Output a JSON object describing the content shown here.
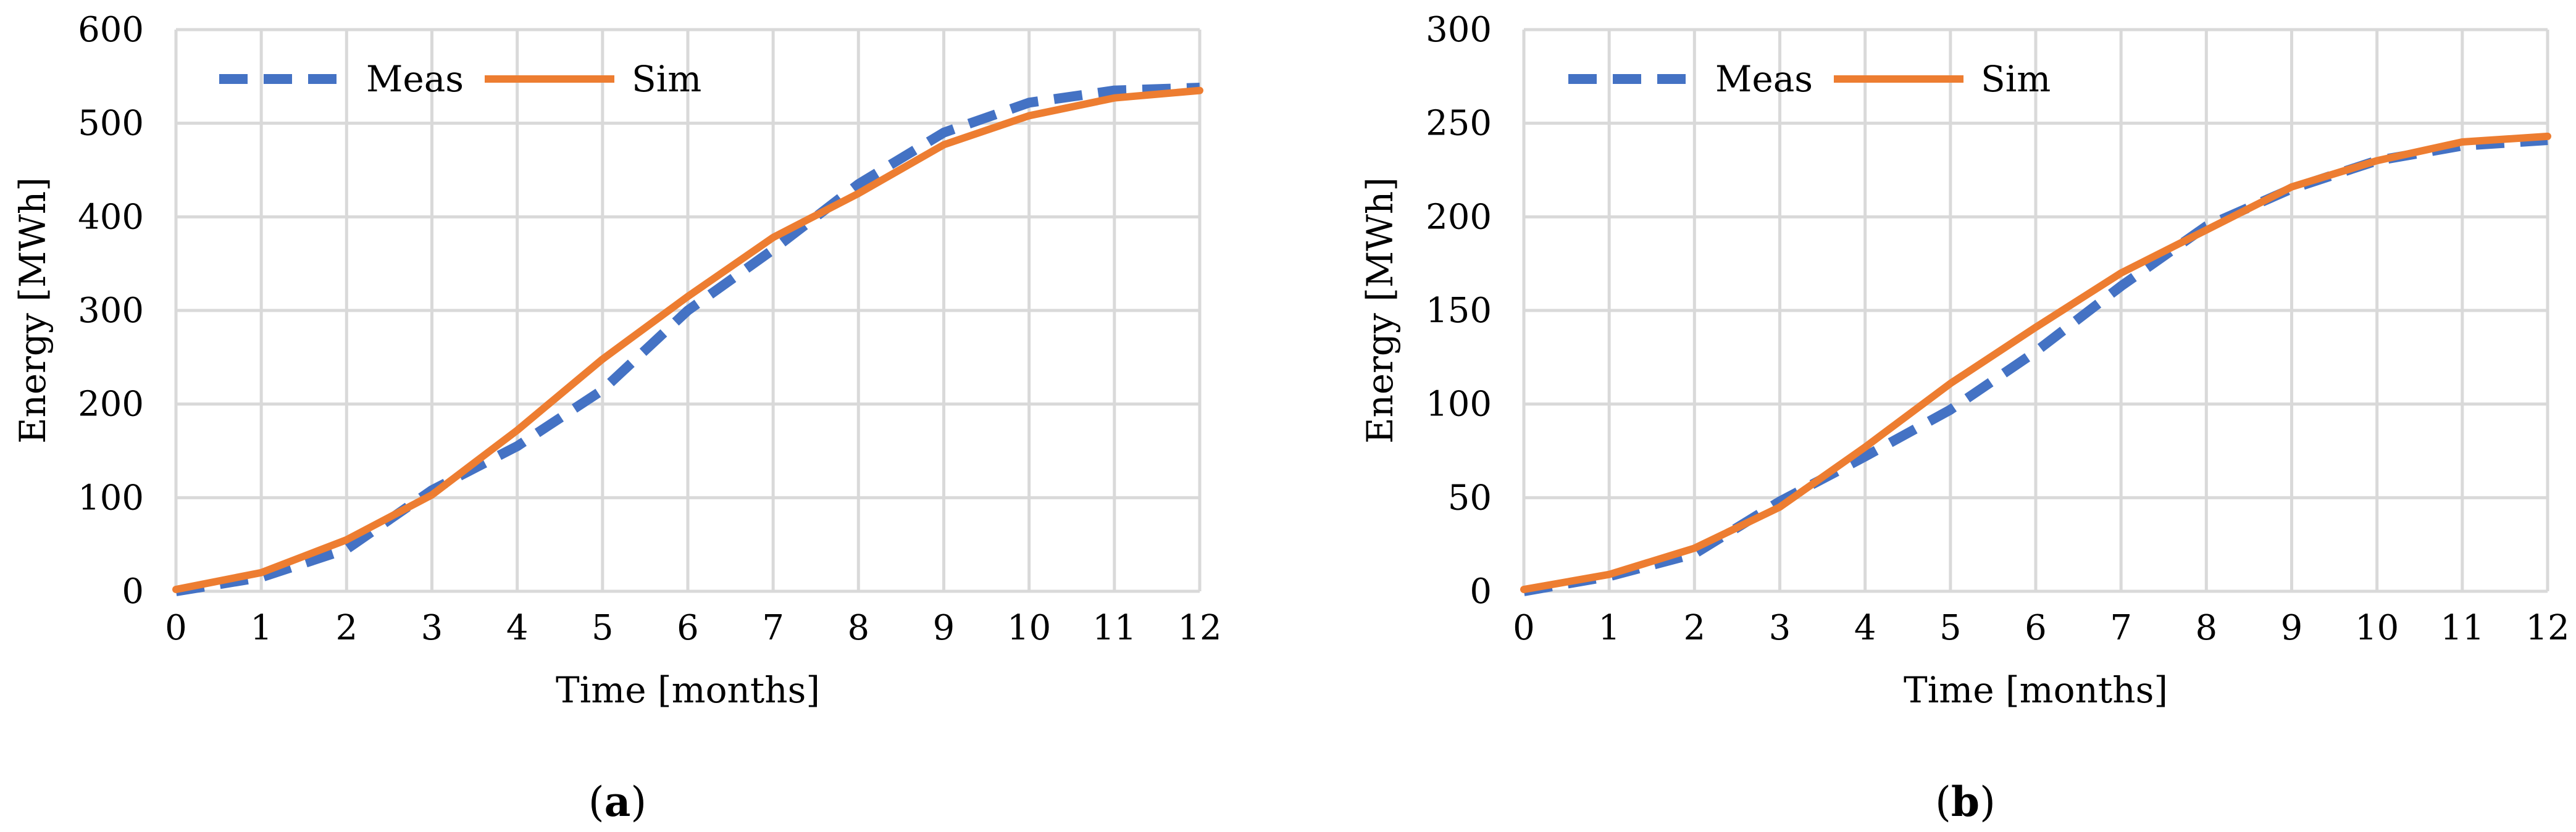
{
  "chart_data": [
    {
      "type": "line",
      "caption_letter": "a",
      "xlabel": "Time [months]",
      "ylabel": "Energy [MWh]",
      "xlim": [
        0,
        12
      ],
      "ylim": [
        0,
        600
      ],
      "xticks": [
        "0",
        "1",
        "2",
        "3",
        "4",
        "5",
        "6",
        "7",
        "8",
        "9",
        "10",
        "11",
        "12"
      ],
      "yticks": [
        "0",
        "100",
        "200",
        "300",
        "400",
        "500",
        "600"
      ],
      "grid": true,
      "legend_position": "top-left",
      "series": [
        {
          "name": "Meas",
          "style": "dashed",
          "color": "#4472c4",
          "x": [
            0,
            1,
            2,
            3,
            4,
            5,
            6,
            7,
            8,
            9,
            10,
            11,
            12
          ],
          "values": [
            0,
            15,
            45,
            108,
            155,
            215,
            300,
            365,
            435,
            490,
            522,
            535,
            538
          ]
        },
        {
          "name": "Sim",
          "style": "solid",
          "color": "#ed7d31",
          "x": [
            0,
            1,
            2,
            3,
            4,
            5,
            6,
            7,
            8,
            9,
            10,
            11,
            12
          ],
          "values": [
            2,
            20,
            55,
            103,
            172,
            248,
            315,
            378,
            425,
            477,
            508,
            527,
            535
          ]
        }
      ]
    },
    {
      "type": "line",
      "caption_letter": "b",
      "xlabel": "Time [months]",
      "ylabel": "Energy [MWh]",
      "xlim": [
        0,
        12
      ],
      "ylim": [
        0,
        300
      ],
      "xticks": [
        "0",
        "1",
        "2",
        "3",
        "4",
        "5",
        "6",
        "7",
        "8",
        "9",
        "10",
        "11",
        "12"
      ],
      "yticks": [
        "0",
        "50",
        "100",
        "150",
        "200",
        "250",
        "300"
      ],
      "grid": true,
      "legend_position": "top-left",
      "series": [
        {
          "name": "Meas",
          "style": "dashed",
          "color": "#4472c4",
          "x": [
            0,
            1,
            2,
            3,
            4,
            5,
            6,
            7,
            8,
            9,
            10,
            11,
            12
          ],
          "values": [
            0,
            8,
            20,
            48,
            72,
            97,
            128,
            163,
            195,
            215,
            230,
            238,
            241
          ]
        },
        {
          "name": "Sim",
          "style": "solid",
          "color": "#ed7d31",
          "x": [
            0,
            1,
            2,
            3,
            4,
            5,
            6,
            7,
            8,
            9,
            10,
            11,
            12
          ],
          "values": [
            1,
            9,
            23,
            45,
            77,
            111,
            141,
            170,
            193,
            216,
            230,
            240,
            243
          ]
        }
      ]
    }
  ]
}
